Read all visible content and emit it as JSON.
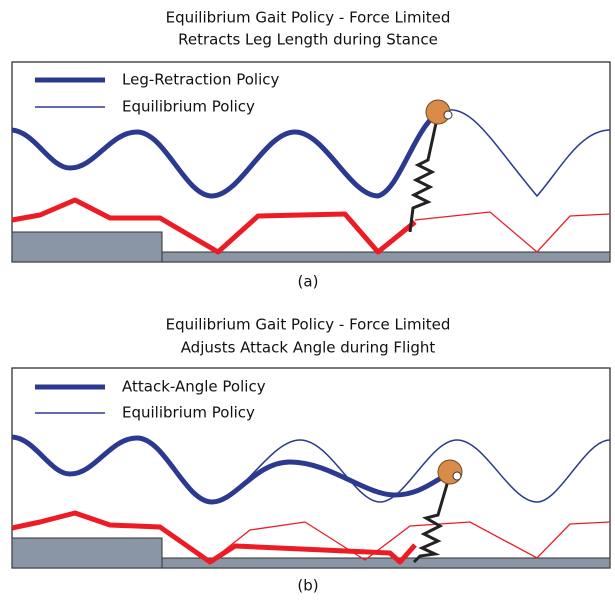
{
  "panels": [
    {
      "title": [
        "Equilibrium Gait Policy - Force Limited",
        "Retracts Leg Length during Stance"
      ],
      "legend": [
        "Leg-Retraction Policy",
        "Equilibrium Policy"
      ],
      "caption": "(a)"
    },
    {
      "title": [
        "Equilibrium Gait Policy - Force Limited",
        "Adjusts Attack Angle during Flight"
      ],
      "legend": [
        "Attack-Angle Policy",
        "Equilibrium Policy"
      ],
      "caption": "(b)"
    }
  ]
}
